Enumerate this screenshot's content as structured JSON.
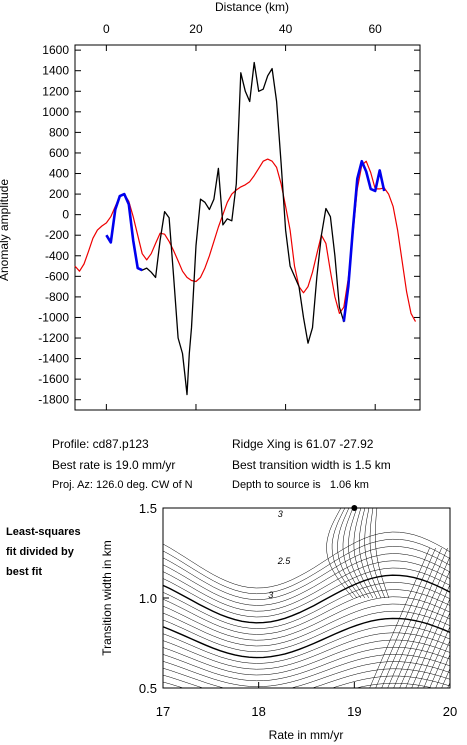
{
  "chart_data": [
    {
      "type": "line",
      "title": "",
      "xlabel": "Distance (km)",
      "ylabel": "Anomaly amplitude",
      "xlim": [
        -7,
        70
      ],
      "ylim": [
        -1900,
        1650
      ],
      "x_ticks": [
        "0",
        "20",
        "40",
        "60"
      ],
      "y_ticks": [
        "1600",
        "1400",
        "1200",
        "1000",
        "800",
        "600",
        "400",
        "200",
        "0",
        "-200",
        "-400",
        "-600",
        "-800",
        "-1000",
        "-1200",
        "-1400",
        "-1600",
        "-1800"
      ],
      "grid": false,
      "series": [
        {
          "color": "#000000",
          "x": [
            0,
            1,
            2,
            3,
            4,
            5,
            6,
            7,
            8,
            9,
            10,
            11,
            12,
            13,
            14,
            15,
            16,
            17,
            17.5,
            18,
            18.5,
            19,
            20,
            21,
            22,
            23,
            24,
            25,
            26,
            27,
            28,
            29,
            30,
            31,
            32,
            33,
            34,
            35,
            36,
            37,
            38,
            39,
            40,
            41,
            42,
            43,
            44,
            45,
            46,
            47,
            48,
            49,
            50,
            51,
            52,
            53,
            54,
            55,
            56,
            57,
            58,
            59,
            60,
            61,
            62
          ],
          "y": [
            -200,
            -260,
            60,
            180,
            200,
            100,
            -250,
            -520,
            -540,
            -520,
            -560,
            -610,
            -250,
            30,
            -30,
            -600,
            -1200,
            -1350,
            -1550,
            -1750,
            -1350,
            -1100,
            -300,
            150,
            120,
            50,
            150,
            450,
            -100,
            -40,
            -60,
            300,
            1380,
            1200,
            1100,
            1480,
            1200,
            1220,
            1350,
            1420,
            1100,
            500,
            -150,
            -500,
            -600,
            -700,
            -1000,
            -1250,
            -1100,
            -600,
            -200,
            60,
            -20,
            -400,
            -900,
            -1040,
            -700,
            -150,
            350,
            520,
            420,
            250,
            230,
            420,
            230
          ]
        },
        {
          "color": "#0000ee",
          "x": [
            0,
            1,
            2,
            3,
            4,
            5,
            6,
            7,
            8,
            53,
            54,
            55,
            56,
            57,
            58,
            59,
            60,
            61,
            62
          ],
          "y": [
            -200,
            -270,
            50,
            180,
            200,
            100,
            -250,
            -520,
            -540,
            -1040,
            -700,
            -150,
            350,
            520,
            420,
            250,
            230,
            430,
            230
          ]
        },
        {
          "color": "#ee0000",
          "x": [
            -7,
            -6,
            -5,
            -4,
            -3,
            -2,
            -1,
            0,
            1,
            2,
            3,
            4,
            5,
            6,
            7,
            8,
            9,
            10,
            11,
            12,
            13,
            14,
            15,
            16,
            17,
            18,
            19,
            20,
            21,
            22,
            23,
            24,
            25,
            26,
            27,
            28,
            29,
            30,
            31,
            32,
            33,
            34,
            35,
            36,
            37,
            38,
            39,
            40,
            41,
            42,
            43,
            44,
            45,
            46,
            47,
            48,
            49,
            50,
            51,
            52,
            53,
            54,
            55,
            56,
            57,
            58,
            59,
            60,
            61,
            62,
            63,
            64,
            65,
            66,
            67,
            68,
            69
          ],
          "y": [
            -500,
            -550,
            -480,
            -360,
            -230,
            -150,
            -110,
            -80,
            -20,
            80,
            180,
            200,
            130,
            -20,
            -200,
            -380,
            -440,
            -380,
            -280,
            -180,
            -190,
            -260,
            -350,
            -450,
            -550,
            -610,
            -640,
            -650,
            -610,
            -520,
            -400,
            -260,
            -120,
            0,
            120,
            200,
            240,
            270,
            290,
            320,
            380,
            450,
            520,
            540,
            520,
            460,
            300,
            80,
            -150,
            -500,
            -700,
            -760,
            -700,
            -560,
            -380,
            -200,
            -280,
            -550,
            -800,
            -960,
            -900,
            -620,
            -200,
            250,
            480,
            520,
            410,
            250,
            250,
            260,
            200,
            80,
            -150,
            -450,
            -750,
            -960,
            -1040
          ]
        }
      ]
    },
    {
      "type": "contour",
      "title": "",
      "xlabel": "Rate in mm/yr",
      "ylabel": "Transition width in km",
      "xlim": [
        17,
        20
      ],
      "ylim": [
        0.5,
        1.5
      ],
      "x_ticks": [
        "17",
        "18",
        "19",
        "20"
      ],
      "y_ticks": [
        "1.5",
        "1.0",
        "0.5"
      ],
      "contour_labels": [
        "3",
        "2.5",
        "3"
      ],
      "best_fit_point": [
        19.0,
        1.5
      ]
    }
  ],
  "profile_info": {
    "profile": "Profile: cd87.p123",
    "best_rate": "Best rate is 19.0 mm/yr",
    "proj_az": "Proj. Az: 126.0 deg. CW of N",
    "ridge_xing": "Ridge Xing is 61.07 -27.92",
    "best_transition": "Best transition width is 1.5 km",
    "depth": "Depth to source is   1.06 km"
  },
  "side_note": {
    "line1": "Least-squares",
    "line2": "fit divided by",
    "line3": "best fit"
  }
}
